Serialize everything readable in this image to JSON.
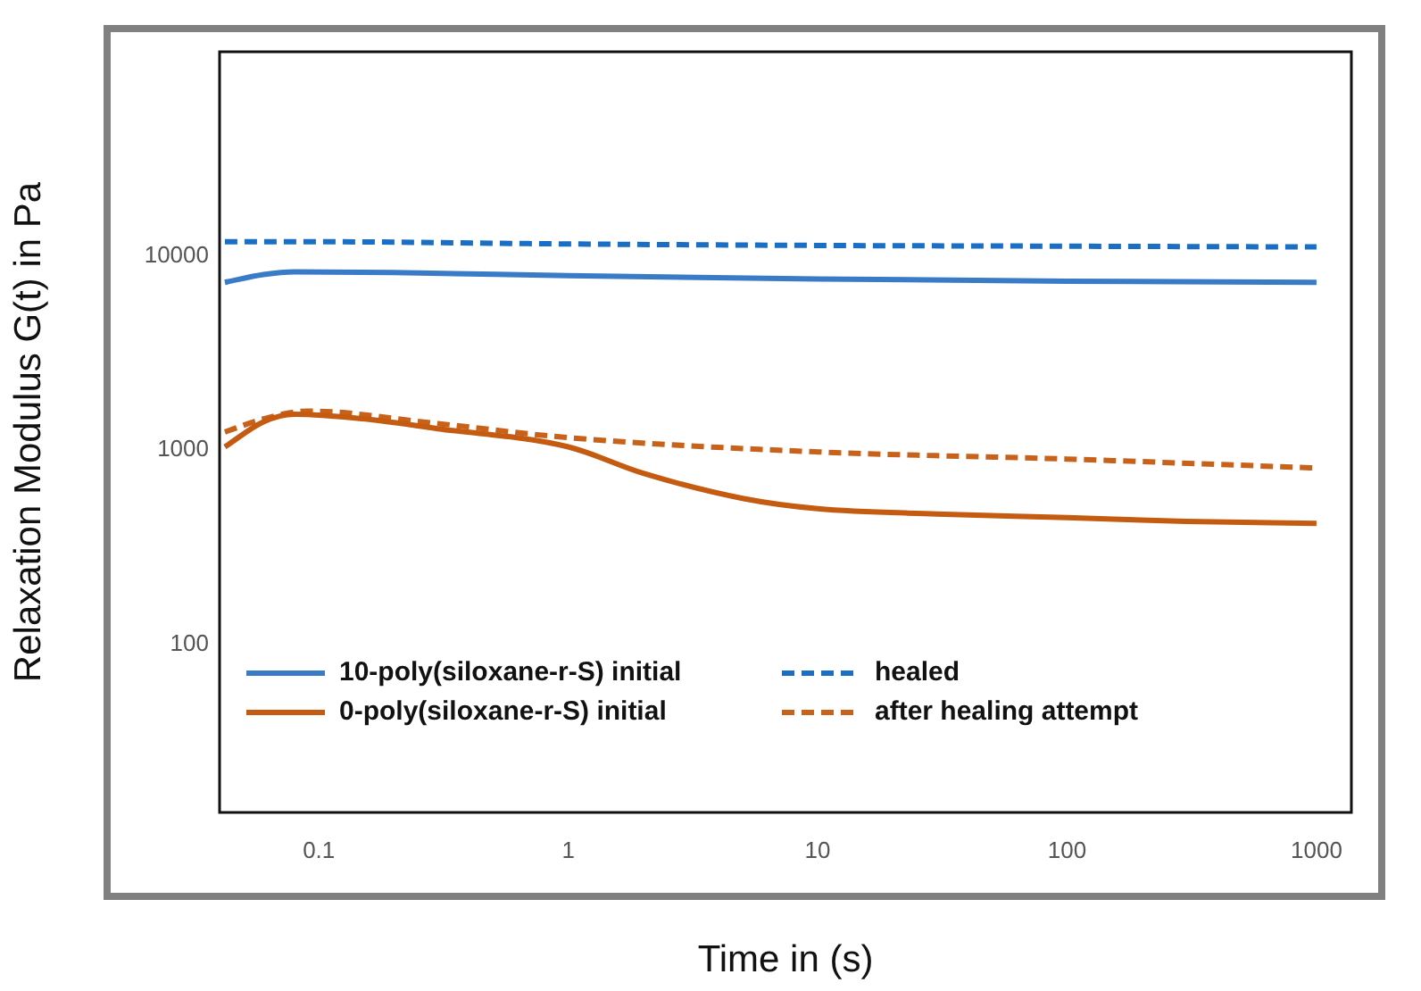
{
  "chart_data": {
    "type": "line",
    "xlabel": "Time in (s)",
    "ylabel": "Relaxation Modulus G(t) in Pa",
    "log": "xy",
    "grid": false,
    "legend": "bottom left",
    "marker": "none",
    "xlim": [
      0.04,
      1380
    ],
    "xticks": [
      0.1,
      1,
      10,
      100,
      1000
    ],
    "ylim": [
      13.7,
      112000
    ],
    "yticks": [
      100,
      1000,
      10000
    ],
    "series": [
      {
        "name": "10-poly(siloxane-r-S) initial",
        "color": "#3a7bc8",
        "line_style": "solid",
        "x": [
          0.042,
          0.06,
          0.08,
          0.2,
          1,
          10,
          100,
          1000
        ],
        "values": [
          7300,
          8000,
          8260,
          8200,
          7900,
          7600,
          7400,
          7300
        ]
      },
      {
        "name": "healed",
        "color": "#1a6fc4",
        "line_style": "dashed",
        "x": [
          0.042,
          0.1,
          1,
          10,
          100,
          1000
        ],
        "values": [
          11800,
          11800,
          11500,
          11300,
          11200,
          11100
        ]
      },
      {
        "name": "0-poly(siloxane-r-S) initial",
        "color": "#c55a11",
        "line_style": "solid",
        "x": [
          0.042,
          0.06,
          0.08,
          0.15,
          0.3,
          1,
          2,
          5,
          10,
          30,
          100,
          300,
          1000
        ],
        "values": [
          1040,
          1400,
          1530,
          1450,
          1290,
          1040,
          760,
          565,
          500,
          470,
          450,
          430,
          420
        ]
      },
      {
        "name": "after healing attempt",
        "color": "#c8621a",
        "line_style": "dashed",
        "x": [
          0.042,
          0.06,
          0.09,
          0.3,
          1,
          10,
          100,
          1000
        ],
        "values": [
          1240,
          1450,
          1590,
          1370,
          1160,
          980,
          900,
          810
        ]
      }
    ]
  }
}
